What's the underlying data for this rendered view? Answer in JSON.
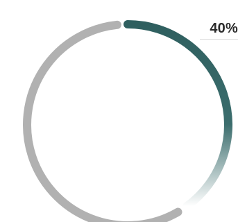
{
  "progress": {
    "label": "40%",
    "fraction": 0.4
  },
  "colors": {
    "track": "#b1b1b1",
    "accent": "#2f5f5f",
    "accent_fade": "#ffffff",
    "label": "#2b2b2b",
    "leader": "#d9d9d9"
  }
}
